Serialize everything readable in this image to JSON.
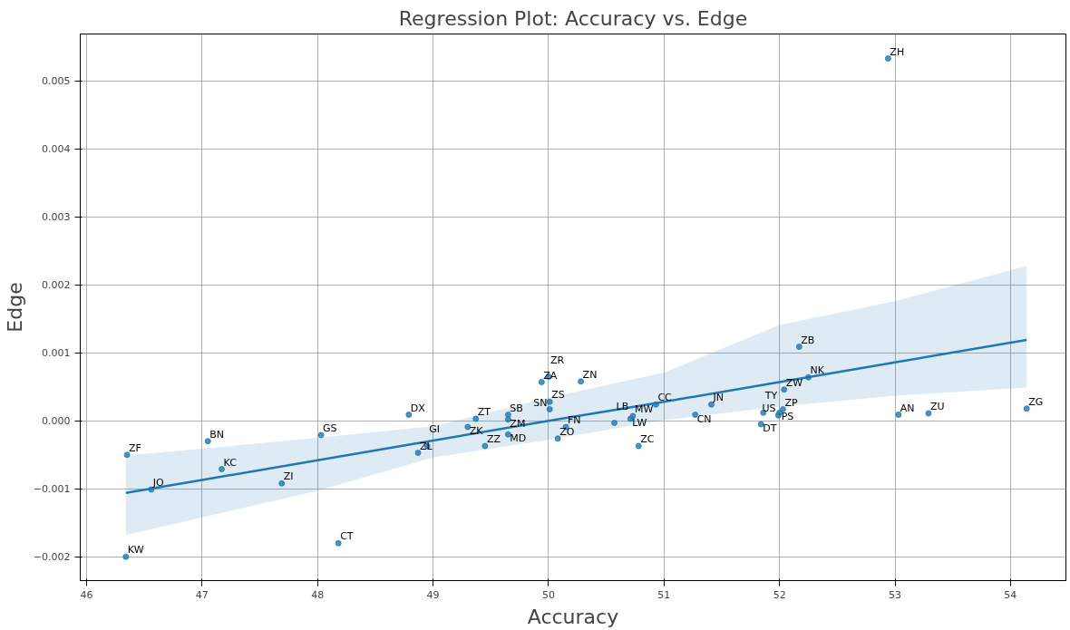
{
  "chart_data": {
    "type": "scatter",
    "title": "Regression Plot: Accuracy vs. Edge",
    "xlabel": "Accuracy",
    "ylabel": "Edge",
    "xlim": [
      45.945,
      54.48
    ],
    "ylim": [
      -0.00235,
      0.00569
    ],
    "xticks": [
      46,
      47,
      48,
      49,
      50,
      51,
      52,
      53,
      54
    ],
    "yticks": [
      {
        "value": -0.002,
        "label": "−0.002"
      },
      {
        "value": -0.001,
        "label": "−0.001"
      },
      {
        "value": 0,
        "label": "0.000"
      },
      {
        "value": 0.001,
        "label": "0.001"
      },
      {
        "value": 0.002,
        "label": "0.002"
      },
      {
        "value": 0.003,
        "label": "0.003"
      },
      {
        "value": 0.004,
        "label": "0.004"
      },
      {
        "value": 0.005,
        "label": "0.005"
      }
    ],
    "grid": true,
    "marker": "circle",
    "x": [
      52.94,
      52.17,
      52.25,
      52.04,
      52.03,
      52.0,
      51.99,
      51.86,
      51.84,
      53.03,
      53.29,
      54.14,
      51.41,
      51.27,
      50.93,
      50.78,
      50.73,
      50.71,
      50.57,
      50.15,
      50.08,
      50.28,
      49.94,
      50.0,
      50.01,
      50.01,
      49.65,
      49.65,
      49.65,
      49.45,
      49.37,
      49.3,
      48.79,
      48.87,
      48.95,
      48.03,
      48.18,
      47.69,
      47.17,
      47.05,
      46.35,
      46.56,
      46.34
    ],
    "series": [
      {
        "color": "#1f77b4",
        "values": [
          0.00533,
          0.00109,
          0.00064,
          0.00046,
          0.00017,
          0.00012,
          8e-05,
          0.00012,
          -5e-05,
          9e-05,
          0.00011,
          0.00018,
          0.00024,
          9e-05,
          0.00024,
          -0.00037,
          7e-05,
          3e-05,
          -3e-05,
          -9e-05,
          -0.00026,
          0.00058,
          0.00057,
          0.00065,
          0.00028,
          0.00017,
          9e-05,
          2e-05,
          -0.0002,
          -0.00037,
          3e-05,
          -9e-05,
          9e-05,
          -0.00047,
          -0.00037,
          -0.00021,
          -0.0018,
          -0.00092,
          -0.00071,
          -0.0003,
          -0.0005,
          -0.00101,
          -0.002
        ]
      },
      {
        "type": "line",
        "marker": "none",
        "color": "#1f77b4",
        "x": [
          46.34,
          47,
          48,
          49,
          50,
          51,
          52,
          53,
          54.14
        ],
        "values": [
          -0.00106,
          -0.00087,
          -0.00058,
          -0.00029,
          0,
          0.00028,
          0.00057,
          0.00086,
          0.00119
        ],
        "upper": [
          -0.00051,
          -0.00041,
          -0.00025,
          -8e-05,
          0.00034,
          0.00071,
          0.00141,
          0.00176,
          0.00228
        ],
        "lower": [
          -0.00168,
          -0.00142,
          -0.00103,
          -0.00054,
          -0.00028,
          1e-05,
          0.00021,
          0.00037,
          0.00049
        ]
      }
    ],
    "annotations": [
      {
        "text": "ZH",
        "x": 52.94,
        "y": 0.00533
      },
      {
        "text": "ZB",
        "x": 52.17,
        "y": 0.00109
      },
      {
        "text": "NK",
        "x": 52.25,
        "y": 0.00064
      },
      {
        "text": "ZW",
        "x": 52.04,
        "y": 0.00046
      },
      {
        "text": "ZP",
        "x": 52.03,
        "y": 0.00017
      },
      {
        "text": "PS",
        "x": 52.0,
        "y": 0.00012
      },
      {
        "text": "US",
        "x": 51.99,
        "y": 8e-05
      },
      {
        "text": "TY",
        "x": 51.86,
        "y": 0.00012
      },
      {
        "text": "DT",
        "x": 51.84,
        "y": -5e-05
      },
      {
        "text": "AN",
        "x": 53.03,
        "y": 9e-05
      },
      {
        "text": "ZU",
        "x": 53.29,
        "y": 0.00011
      },
      {
        "text": "ZG",
        "x": 54.14,
        "y": 0.00018
      },
      {
        "text": "JN",
        "x": 51.41,
        "y": 0.00024
      },
      {
        "text": "CN",
        "x": 51.27,
        "y": 9e-05
      },
      {
        "text": "CC",
        "x": 50.93,
        "y": 0.00024
      },
      {
        "text": "ZC",
        "x": 50.78,
        "y": -0.00037
      },
      {
        "text": "MW",
        "x": 50.73,
        "y": 7e-05
      },
      {
        "text": "LW",
        "x": 50.71,
        "y": 3e-05
      },
      {
        "text": "LB",
        "x": 50.57,
        "y": -3e-05
      },
      {
        "text": "FN",
        "x": 50.15,
        "y": -9e-05
      },
      {
        "text": "ZO",
        "x": 50.08,
        "y": -0.00026
      },
      {
        "text": "ZN",
        "x": 50.28,
        "y": 0.00058
      },
      {
        "text": "ZA",
        "x": 49.94,
        "y": 0.00057
      },
      {
        "text": "ZR",
        "x": 50.0,
        "y": 0.00065
      },
      {
        "text": "ZS",
        "x": 50.01,
        "y": 0.00028
      },
      {
        "text": "SN",
        "x": 50.01,
        "y": 0.00017
      },
      {
        "text": "SB",
        "x": 49.65,
        "y": 9e-05
      },
      {
        "text": "ZM",
        "x": 49.65,
        "y": 2e-05
      },
      {
        "text": "MD",
        "x": 49.65,
        "y": -0.0002
      },
      {
        "text": "ZZ",
        "x": 49.45,
        "y": -0.00037
      },
      {
        "text": "ZT",
        "x": 49.37,
        "y": 3e-05
      },
      {
        "text": "ZK",
        "x": 49.3,
        "y": -9e-05
      },
      {
        "text": "DX",
        "x": 48.79,
        "y": 9e-05
      },
      {
        "text": "ZL",
        "x": 48.87,
        "y": -0.00047
      },
      {
        "text": "GI",
        "x": 48.95,
        "y": -0.00037
      },
      {
        "text": "GS",
        "x": 48.03,
        "y": -0.00021
      },
      {
        "text": "CT",
        "x": 48.18,
        "y": -0.0018
      },
      {
        "text": "ZI",
        "x": 47.69,
        "y": -0.00092
      },
      {
        "text": "KC",
        "x": 47.17,
        "y": -0.00071
      },
      {
        "text": "BN",
        "x": 47.05,
        "y": -0.0003
      },
      {
        "text": "ZF",
        "x": 46.35,
        "y": -0.0005
      },
      {
        "text": "JO",
        "x": 46.56,
        "y": -0.00101
      },
      {
        "text": "KW",
        "x": 46.34,
        "y": -0.002
      }
    ]
  }
}
